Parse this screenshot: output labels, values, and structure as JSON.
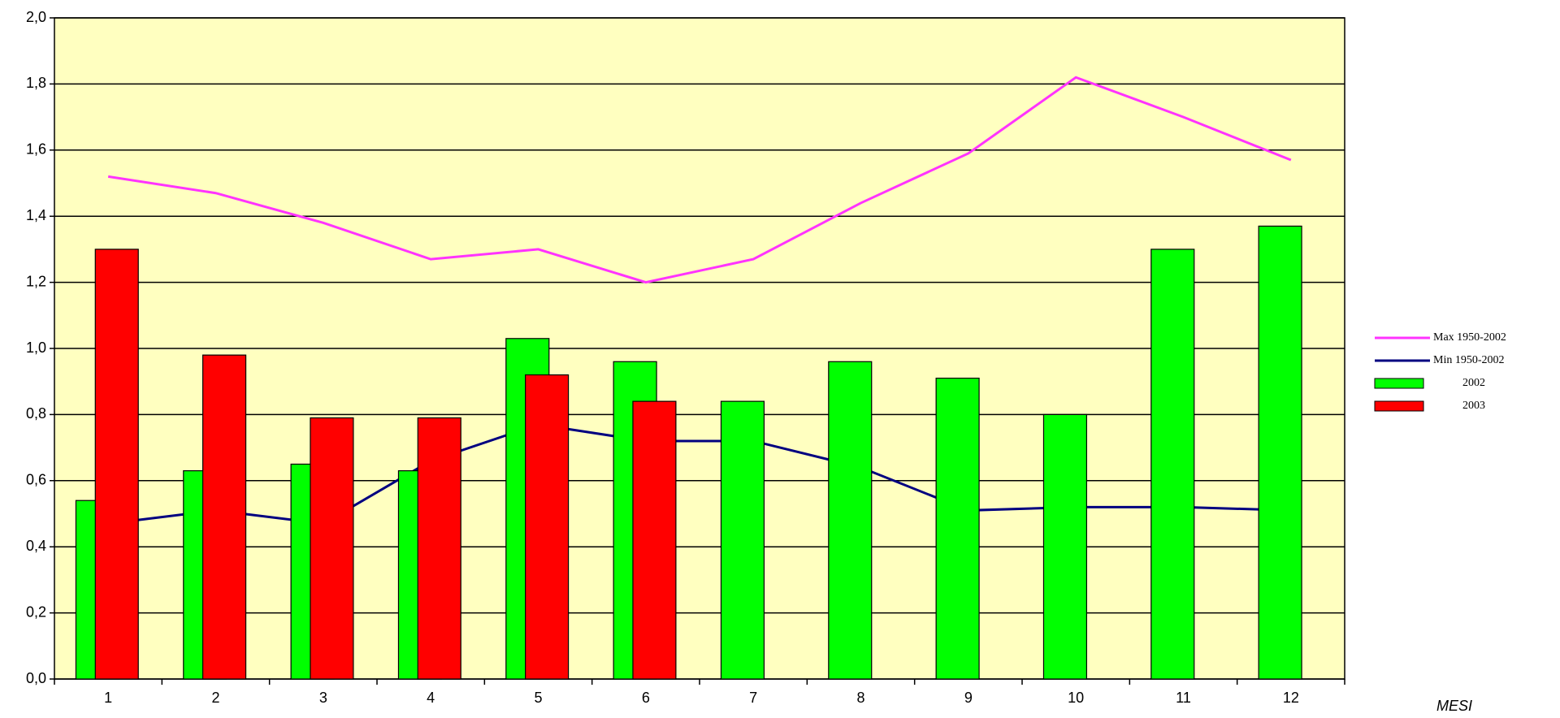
{
  "chart_data": {
    "type": "bar",
    "x_label": "MESI",
    "categories": [
      "1",
      "2",
      "3",
      "4",
      "5",
      "6",
      "7",
      "8",
      "9",
      "10",
      "11",
      "12"
    ],
    "series": [
      {
        "name": "Max  1950-2002",
        "mark": "line",
        "color": "#ff33ff",
        "values": [
          1.52,
          1.47,
          1.38,
          1.27,
          1.3,
          1.2,
          1.27,
          1.44,
          1.59,
          1.82,
          1.7,
          1.57
        ]
      },
      {
        "name": "Min  1950-2002",
        "mark": "line",
        "color": "#000080",
        "values": [
          0.47,
          0.51,
          0.47,
          0.66,
          0.77,
          0.72,
          0.72,
          0.64,
          0.51,
          0.52,
          0.52,
          0.51
        ]
      },
      {
        "name": "2002",
        "mark": "bar",
        "color": "#00ff00",
        "values": [
          0.54,
          0.63,
          0.65,
          0.63,
          1.03,
          0.96,
          0.84,
          0.96,
          0.91,
          0.8,
          1.3,
          1.37
        ]
      },
      {
        "name": "2003",
        "mark": "bar",
        "color": "#ff0000",
        "values": [
          1.3,
          0.98,
          0.79,
          0.79,
          0.92,
          0.84,
          null,
          null,
          null,
          null,
          null,
          null
        ]
      }
    ],
    "ylim": [
      0,
      2
    ],
    "yticks": [
      {
        "value": 0,
        "label": "0,0"
      },
      {
        "value": 0.2,
        "label": "0,2"
      },
      {
        "value": 0.4,
        "label": "0,4"
      },
      {
        "value": 0.6,
        "label": "0,6"
      },
      {
        "value": 0.8,
        "label": "0,8"
      },
      {
        "value": 1.0,
        "label": "1,0"
      },
      {
        "value": 1.2,
        "label": "1,2"
      },
      {
        "value": 1.4,
        "label": "1,4"
      },
      {
        "value": 1.6,
        "label": "1,6"
      },
      {
        "value": 1.8,
        "label": "1,8"
      },
      {
        "value": 2.0,
        "label": "2,0"
      }
    ],
    "grid": true,
    "plot_background": "#ffffc0",
    "legend": "right"
  }
}
